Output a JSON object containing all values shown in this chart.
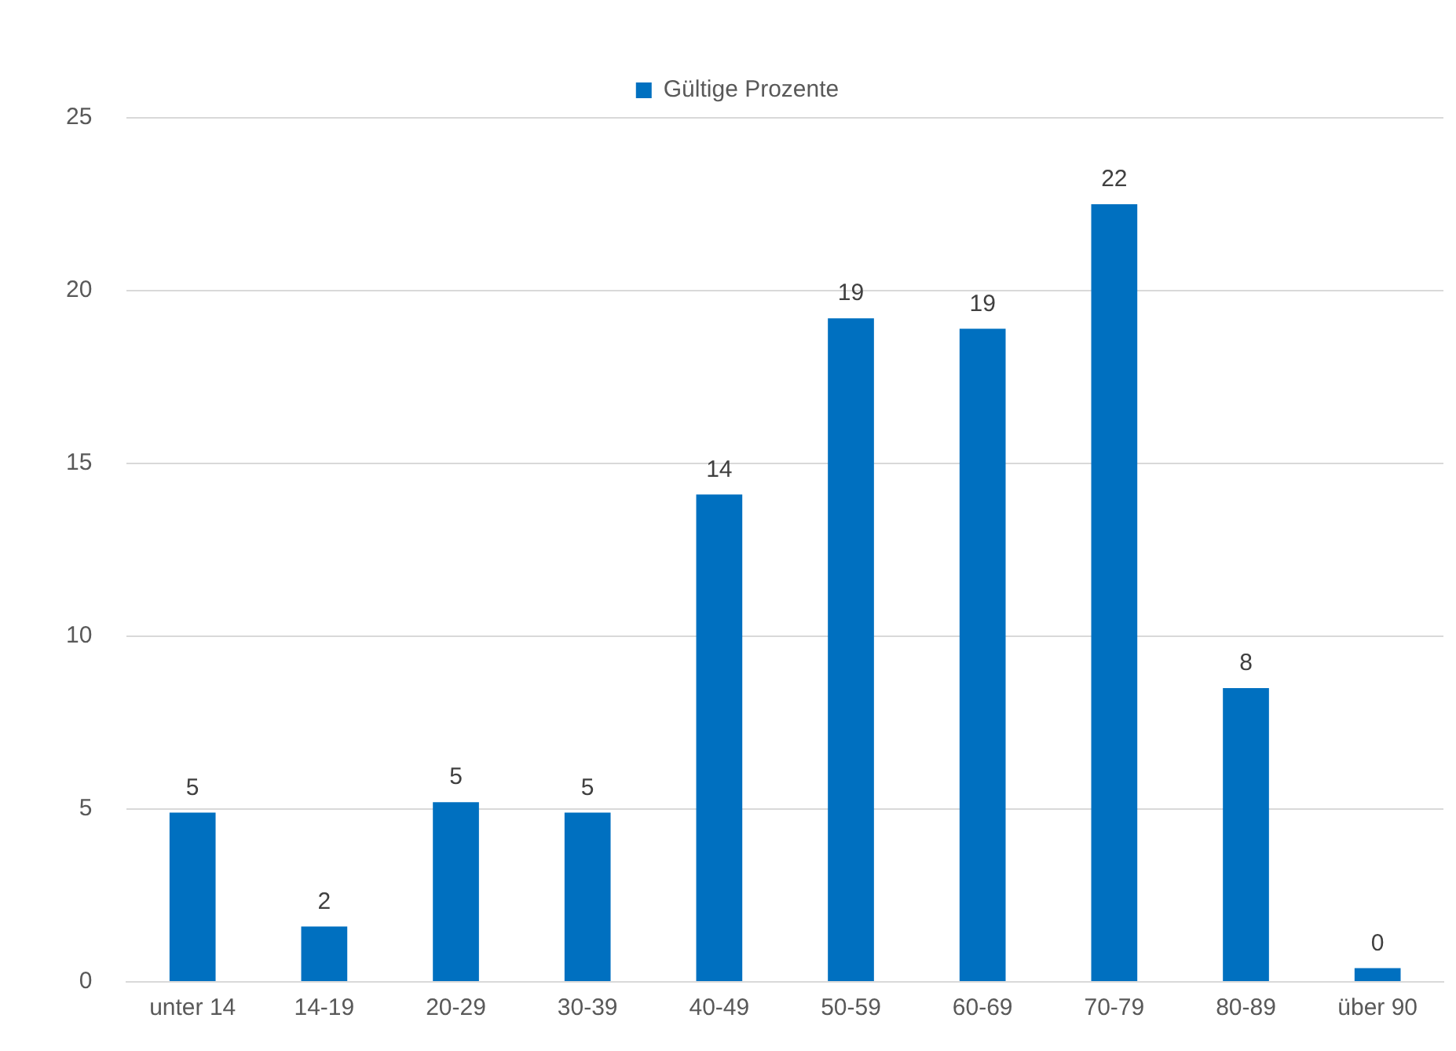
{
  "chart_data": {
    "type": "bar",
    "categories": [
      "unter 14",
      "14-19",
      "20-29",
      "30-39",
      "40-49",
      "50-59",
      "60-69",
      "70-79",
      "80-89",
      "über 90"
    ],
    "series": [
      {
        "name": "Gültige Prozente",
        "color": "#0070c0",
        "values": [
          4.9,
          1.6,
          5.2,
          4.9,
          14.1,
          19.2,
          18.9,
          22.5,
          8.5,
          0.4
        ],
        "value_labels": [
          "5",
          "2",
          "5",
          "5",
          "14",
          "19",
          "19",
          "22",
          "8",
          "0"
        ]
      }
    ],
    "ylim": [
      0,
      25
    ],
    "yticks": [
      0,
      5,
      10,
      15,
      20,
      25
    ],
    "grid": "y",
    "legend": "top"
  }
}
